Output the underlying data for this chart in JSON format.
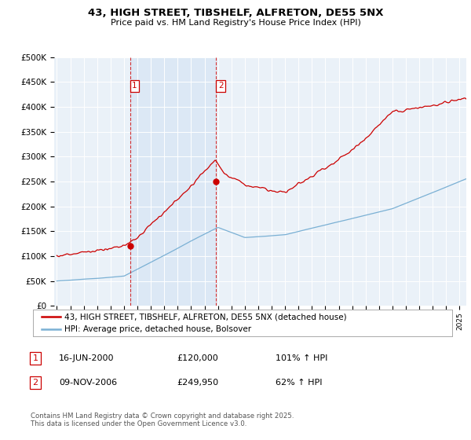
{
  "title": "43, HIGH STREET, TIBSHELF, ALFRETON, DE55 5NX",
  "subtitle": "Price paid vs. HM Land Registry's House Price Index (HPI)",
  "legend_line1": "43, HIGH STREET, TIBSHELF, ALFRETON, DE55 5NX (detached house)",
  "legend_line2": "HPI: Average price, detached house, Bolsover",
  "sale1_label": "1",
  "sale1_date": "16-JUN-2000",
  "sale1_price": "£120,000",
  "sale1_hpi": "101% ↑ HPI",
  "sale2_label": "2",
  "sale2_date": "09-NOV-2006",
  "sale2_price": "£249,950",
  "sale2_hpi": "62% ↑ HPI",
  "footer": "Contains HM Land Registry data © Crown copyright and database right 2025.\nThis data is licensed under the Open Government Licence v3.0.",
  "red_color": "#cc0000",
  "blue_color": "#7ab0d4",
  "shade_color": "#dce8f5",
  "sale1_x": 2000.45,
  "sale1_y": 120000,
  "sale2_x": 2006.86,
  "sale2_y": 249950,
  "vline1_x": 2000.45,
  "vline2_x": 2006.86,
  "ylim": [
    0,
    500000
  ],
  "xlim_start": 1994.8,
  "xlim_end": 2025.5,
  "background_color": "#eaf1f8"
}
